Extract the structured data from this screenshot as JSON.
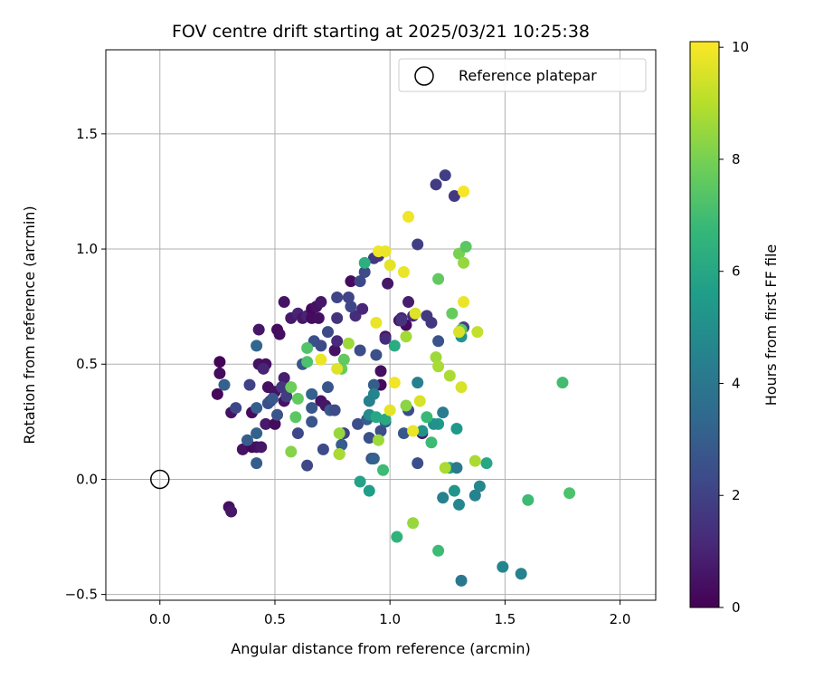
{
  "chart_data": {
    "type": "scatter",
    "title": "FOV centre drift starting at 2025/03/21 10:25:38",
    "xlabel": "Angular distance from reference (arcmin)",
    "ylabel": "Rotation from reference (arcmin)",
    "xlim": [
      -0.235,
      2.155
    ],
    "ylim": [
      -0.525,
      1.865
    ],
    "xticks": [
      0.0,
      0.5,
      1.0,
      1.5,
      2.0
    ],
    "xtick_labels": [
      "0.0",
      "0.5",
      "1.0",
      "1.5",
      "2.0"
    ],
    "yticks": [
      -0.5,
      0.0,
      0.5,
      1.0,
      1.5
    ],
    "ytick_labels": [
      "−0.5",
      "0.0",
      "0.5",
      "1.0",
      "1.5"
    ],
    "grid": true,
    "legend": {
      "position": "top-right",
      "entries": [
        "Reference platepar"
      ]
    },
    "reference_point": {
      "x": 0.0,
      "y": 0.0,
      "marker": "open-circle",
      "color": "#000000"
    },
    "colorbar": {
      "label": "Hours from first FF file",
      "range": [
        0,
        10.1
      ],
      "ticks": [
        0,
        2,
        4,
        6,
        8,
        10
      ],
      "tick_labels": [
        "0",
        "2",
        "4",
        "6",
        "8",
        "10"
      ],
      "colormap": "viridis",
      "colormap_stops": [
        "#440154",
        "#482878",
        "#3e4989",
        "#31688e",
        "#26828e",
        "#1f9e89",
        "#35b779",
        "#6ece58",
        "#b5de2b",
        "#fde725"
      ]
    },
    "series": [
      {
        "points": [
          [
            0.26,
            0.51,
            0.1
          ],
          [
            0.26,
            0.46,
            0.3
          ],
          [
            0.25,
            0.37,
            0.2
          ],
          [
            0.31,
            0.29,
            0.5
          ],
          [
            0.3,
            -0.12,
            0.4
          ],
          [
            0.31,
            -0.14,
            0.6
          ],
          [
            0.36,
            0.13,
            0.5
          ],
          [
            0.4,
            0.29,
            0.3
          ],
          [
            0.4,
            0.14,
            0.2
          ],
          [
            0.42,
            0.14,
            0.4
          ],
          [
            0.44,
            0.14,
            0.6
          ],
          [
            0.43,
            0.65,
            0.6
          ],
          [
            0.43,
            0.5,
            0.5
          ],
          [
            0.46,
            0.5,
            0.4
          ],
          [
            0.45,
            0.48,
            1.0
          ],
          [
            0.46,
            0.24,
            0.7
          ],
          [
            0.47,
            0.4,
            0.4
          ],
          [
            0.48,
            0.34,
            0.6
          ],
          [
            0.5,
            0.24,
            0.3
          ],
          [
            0.5,
            0.38,
            0.5
          ],
          [
            0.51,
            0.65,
            0.3
          ],
          [
            0.52,
            0.63,
            0.4
          ],
          [
            0.53,
            0.4,
            0.6
          ],
          [
            0.54,
            0.44,
            0.8
          ],
          [
            0.54,
            0.34,
            0.5
          ],
          [
            0.54,
            0.77,
            0.5
          ],
          [
            0.57,
            0.7,
            0.7
          ],
          [
            0.6,
            0.72,
            1.0
          ],
          [
            0.62,
            0.7,
            0.6
          ],
          [
            0.64,
            0.71,
            1.0
          ],
          [
            0.66,
            0.74,
            0.2
          ],
          [
            0.66,
            0.7,
            0.3
          ],
          [
            0.68,
            0.75,
            0.5
          ],
          [
            0.69,
            0.7,
            0.4
          ],
          [
            0.7,
            0.77,
            0.6
          ],
          [
            0.7,
            0.34,
            0.5
          ],
          [
            0.72,
            0.32,
            0.6
          ],
          [
            0.76,
            0.56,
            0.5
          ],
          [
            0.77,
            0.6,
            1.2
          ],
          [
            0.83,
            0.86,
            0.3
          ],
          [
            0.85,
            0.71,
            1.3
          ],
          [
            0.88,
            0.74,
            1.1
          ],
          [
            0.99,
            0.85,
            0.6
          ],
          [
            0.98,
            0.62,
            0.5
          ],
          [
            0.98,
            0.61,
            1.3
          ],
          [
            0.96,
            0.47,
            0.4
          ],
          [
            0.96,
            0.41,
            0.2
          ],
          [
            1.04,
            0.69,
            0.5
          ],
          [
            1.05,
            0.7,
            1.0
          ],
          [
            1.07,
            0.67,
            0.3
          ],
          [
            1.08,
            0.77,
            0.8
          ],
          [
            1.1,
            0.71,
            1.2
          ],
          [
            1.14,
            0.2,
            0.6
          ],
          [
            0.28,
            0.41,
            3.1
          ],
          [
            0.33,
            0.31,
            2.2
          ],
          [
            0.39,
            0.41,
            2.0
          ],
          [
            0.38,
            0.17,
            3.0
          ],
          [
            0.42,
            0.58,
            3.3
          ],
          [
            0.42,
            0.31,
            3.0
          ],
          [
            0.42,
            0.2,
            3.2
          ],
          [
            0.42,
            0.07,
            3.0
          ],
          [
            0.47,
            0.33,
            2.5
          ],
          [
            0.49,
            0.35,
            2.8
          ],
          [
            0.51,
            0.28,
            2.6
          ],
          [
            0.53,
            0.4,
            1.6
          ],
          [
            0.55,
            0.36,
            1.8
          ],
          [
            0.6,
            0.2,
            2.2
          ],
          [
            0.62,
            0.5,
            2.7
          ],
          [
            0.64,
            0.06,
            2.2
          ],
          [
            0.66,
            0.37,
            3.1
          ],
          [
            0.66,
            0.31,
            2.8
          ],
          [
            0.66,
            0.25,
            2.7
          ],
          [
            0.67,
            0.6,
            2.5
          ],
          [
            0.7,
            0.58,
            2.3
          ],
          [
            0.71,
            0.13,
            2.3
          ],
          [
            0.73,
            0.4,
            2.7
          ],
          [
            0.73,
            0.64,
            2.3
          ],
          [
            0.74,
            0.3,
            2.9
          ],
          [
            0.76,
            0.3,
            2.3
          ],
          [
            0.77,
            0.79,
            2.1
          ],
          [
            0.77,
            0.7,
            1.5
          ],
          [
            0.78,
            0.11,
            2.4
          ],
          [
            0.79,
            0.15,
            3.0
          ],
          [
            0.8,
            0.2,
            2.0
          ],
          [
            0.82,
            0.79,
            2.1
          ],
          [
            0.83,
            0.75,
            2.2
          ],
          [
            0.86,
            0.24,
            2.4
          ],
          [
            0.87,
            0.86,
            2.2
          ],
          [
            0.87,
            0.56,
            2.4
          ],
          [
            0.89,
            0.9,
            2.3
          ],
          [
            0.9,
            0.26,
            3.0
          ],
          [
            0.91,
            0.18,
            2.5
          ],
          [
            0.92,
            0.09,
            2.7
          ],
          [
            0.93,
            0.09,
            3.1
          ],
          [
            0.93,
            0.41,
            3.0
          ],
          [
            0.93,
            0.96,
            1.7
          ],
          [
            0.94,
            0.54,
            2.5
          ],
          [
            0.95,
            0.97,
            1.6
          ],
          [
            0.96,
            0.21,
            2.4
          ],
          [
            0.98,
            0.25,
            2.8
          ],
          [
            1.05,
            0.69,
            1.5
          ],
          [
            1.06,
            0.2,
            2.8
          ],
          [
            1.08,
            0.3,
            2.4
          ],
          [
            1.12,
            1.02,
            1.9
          ],
          [
            1.12,
            0.07,
            2.5
          ],
          [
            1.16,
            0.71,
            1.7
          ],
          [
            1.18,
            0.68,
            1.6
          ],
          [
            1.21,
            0.6,
            2.6
          ],
          [
            1.2,
            1.28,
            1.8
          ],
          [
            1.24,
            1.32,
            1.9
          ],
          [
            1.28,
            1.23,
            1.7
          ],
          [
            1.32,
            0.66,
            2.0
          ],
          [
            0.89,
            0.94,
            6.4
          ],
          [
            0.93,
            0.37,
            4.6
          ],
          [
            0.91,
            0.34,
            4.4
          ],
          [
            0.91,
            0.28,
            4.9
          ],
          [
            1.12,
            0.42,
            4.4
          ],
          [
            1.14,
            0.21,
            5.1
          ],
          [
            1.21,
            0.24,
            5.4
          ],
          [
            1.23,
            0.29,
            4.2
          ],
          [
            1.26,
            0.05,
            5.9
          ],
          [
            1.29,
            0.05,
            4.1
          ],
          [
            1.23,
            -0.08,
            4.4
          ],
          [
            1.28,
            -0.05,
            5.2
          ],
          [
            1.3,
            -0.11,
            4.7
          ],
          [
            1.31,
            0.62,
            5.2
          ],
          [
            1.37,
            -0.07,
            4.5
          ],
          [
            1.39,
            -0.03,
            4.7
          ],
          [
            1.42,
            0.07,
            6.0
          ],
          [
            1.49,
            -0.38,
            4.6
          ],
          [
            1.57,
            -0.41,
            4.5
          ],
          [
            1.31,
            -0.44,
            4.0
          ],
          [
            1.29,
            0.22,
            5.4
          ],
          [
            1.19,
            0.24,
            5.1
          ],
          [
            0.87,
            -0.01,
            5.8
          ],
          [
            0.91,
            -0.05,
            5.6
          ],
          [
            1.02,
            0.58,
            6.2
          ],
          [
            0.94,
            0.27,
            6.0
          ],
          [
            0.98,
            0.26,
            6.1
          ],
          [
            0.57,
            0.4,
            7.8
          ],
          [
            0.57,
            0.12,
            8.2
          ],
          [
            0.6,
            0.35,
            7.6
          ],
          [
            0.59,
            0.27,
            7.5
          ],
          [
            0.64,
            0.57,
            7.3
          ],
          [
            0.64,
            0.51,
            7.2
          ],
          [
            0.78,
            0.11,
            8.8
          ],
          [
            0.79,
            0.48,
            7.7
          ],
          [
            0.8,
            0.52,
            7.6
          ],
          [
            0.78,
            0.2,
            8.5
          ],
          [
            0.82,
            0.59,
            8.6
          ],
          [
            0.95,
            0.17,
            8.6
          ],
          [
            0.97,
            0.04,
            6.9
          ],
          [
            1.03,
            -0.25,
            6.5
          ],
          [
            1.07,
            0.32,
            8.3
          ],
          [
            1.07,
            0.62,
            8.7
          ],
          [
            1.1,
            -0.19,
            8.5
          ],
          [
            1.16,
            0.27,
            6.8
          ],
          [
            1.18,
            0.16,
            6.9
          ],
          [
            1.21,
            -0.31,
            6.9
          ],
          [
            1.21,
            0.87,
            7.6
          ],
          [
            1.2,
            0.53,
            8.6
          ],
          [
            1.21,
            0.49,
            8.8
          ],
          [
            1.24,
            0.05,
            8.8
          ],
          [
            1.26,
            0.45,
            8.8
          ],
          [
            1.27,
            0.72,
            7.7
          ],
          [
            1.3,
            0.98,
            8.0
          ],
          [
            1.31,
            0.65,
            7.5
          ],
          [
            1.32,
            0.94,
            8.5
          ],
          [
            1.33,
            1.01,
            7.5
          ],
          [
            1.37,
            0.08,
            8.8
          ],
          [
            1.6,
            -0.09,
            6.9
          ],
          [
            1.75,
            0.42,
            7.0
          ],
          [
            1.78,
            -0.06,
            7.2
          ],
          [
            1.38,
            0.64,
            9.2
          ],
          [
            0.7,
            0.52,
            9.8
          ],
          [
            0.77,
            0.48,
            9.6
          ],
          [
            0.94,
            0.68,
            9.8
          ],
          [
            0.95,
            0.99,
            9.9
          ],
          [
            0.98,
            0.99,
            9.8
          ],
          [
            1.0,
            0.93,
            9.7
          ],
          [
            1.0,
            0.3,
            9.7
          ],
          [
            1.02,
            0.42,
            9.9
          ],
          [
            1.06,
            0.9,
            9.8
          ],
          [
            1.08,
            1.14,
            9.9
          ],
          [
            1.1,
            0.21,
            9.8
          ],
          [
            1.11,
            0.72,
            9.6
          ],
          [
            1.13,
            0.34,
            9.5
          ],
          [
            1.31,
            0.4,
            9.5
          ],
          [
            1.32,
            0.77,
            9.8
          ],
          [
            1.32,
            1.25,
            10.0
          ],
          [
            1.3,
            0.64,
            9.5
          ]
        ]
      }
    ]
  }
}
